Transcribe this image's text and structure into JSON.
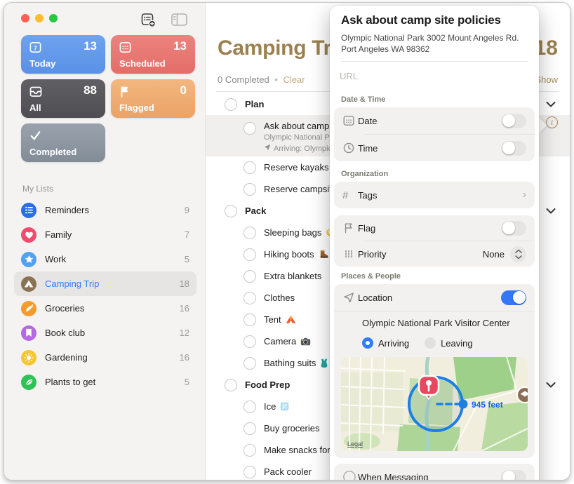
{
  "theme": {
    "accent_tan": "#9b8050",
    "accent_blue": "#2f7cf6",
    "link_tan": "#b49a6b",
    "selected_row_bg": "#f0efee"
  },
  "window": {
    "traffic_lights": {
      "close": "#ff5f57",
      "minimize": "#febc2e",
      "zoom": "#28c840"
    },
    "toolbar": [
      {
        "name": "add-reminder-icon"
      },
      {
        "name": "toggle-sidebar-icon"
      }
    ]
  },
  "sidebar": {
    "cards": [
      {
        "id": "today",
        "label": "Today",
        "count": "13",
        "icon": "calendar-today-icon",
        "color1": "#6ea3ee",
        "color2": "#5a90e7"
      },
      {
        "id": "scheduled",
        "label": "Scheduled",
        "count": "13",
        "icon": "calendar-grid-icon",
        "color1": "#ec837e",
        "color2": "#e46d68"
      },
      {
        "id": "all",
        "label": "All",
        "count": "88",
        "icon": "tray-icon",
        "color1": "#616165",
        "color2": "#4e4e52"
      },
      {
        "id": "flagged",
        "label": "Flagged",
        "count": "0",
        "icon": "flag-icon",
        "color1": "#f2b77f",
        "color2": "#eca266"
      },
      {
        "id": "completed",
        "label": "Completed",
        "count": "",
        "icon": "checkmark-icon",
        "color1": "#9aa3ad",
        "color2": "#828c97"
      }
    ],
    "my_lists_label": "My Lists",
    "lists": [
      {
        "name": "Reminders",
        "count": "9",
        "icon": "list-bullets-icon",
        "color": "#2a6de5",
        "selected": false
      },
      {
        "name": "Family",
        "count": "7",
        "icon": "heart-icon",
        "color": "#f4486c",
        "selected": false
      },
      {
        "name": "Work",
        "count": "5",
        "icon": "star-icon",
        "color": "#54a1ef",
        "selected": false
      },
      {
        "name": "Camping Trip",
        "count": "18",
        "icon": "tent-icon",
        "color": "#8a7355",
        "selected": true
      },
      {
        "name": "Groceries",
        "count": "16",
        "icon": "carrot-icon",
        "color": "#f39b2c",
        "selected": false
      },
      {
        "name": "Book club",
        "count": "12",
        "icon": "bookmark-icon",
        "color": "#b468e3",
        "selected": false
      },
      {
        "name": "Gardening",
        "count": "16",
        "icon": "sun-icon",
        "color": "#f6c52f",
        "selected": false
      },
      {
        "name": "Plants to get",
        "count": "5",
        "icon": "leaf-icon",
        "color": "#30c157",
        "selected": false
      }
    ]
  },
  "main": {
    "title": "Camping Trip",
    "list_count": "18",
    "completed_status": "0 Completed",
    "separator": "•",
    "clear_label": "Clear",
    "show_label": "Show",
    "sections": [
      {
        "title": "Plan",
        "items": [
          {
            "text": "Ask about camp site policies",
            "selected": true,
            "note": "Olympic National Park 3002 Mount Angeles Rd. Port Angeles WA 98362",
            "location_note": "Arriving: Olympic National Park Visitor Center"
          },
          {
            "text": "Reserve kayaks",
            "emoji": "canoe-emoji"
          },
          {
            "text": "Reserve campsites"
          }
        ]
      },
      {
        "title": "Pack",
        "items": [
          {
            "text": "Sleeping bags",
            "emoji": "moon-emoji"
          },
          {
            "text": "Hiking boots",
            "emoji": "boot-emoji"
          },
          {
            "text": "Extra blankets"
          },
          {
            "text": "Clothes"
          },
          {
            "text": "Tent",
            "emoji": "tent-emoji"
          },
          {
            "text": "Camera",
            "emoji": "camera-emoji"
          },
          {
            "text": "Bathing suits",
            "emoji": "swimsuit-emoji"
          }
        ]
      },
      {
        "title": "Food Prep",
        "items": [
          {
            "text": "Ice",
            "emoji": "ice-emoji"
          },
          {
            "text": "Buy groceries"
          },
          {
            "text": "Make snacks for road trip"
          },
          {
            "text": "Pack cooler"
          }
        ]
      }
    ]
  },
  "popup": {
    "title": "Ask about camp site policies",
    "address": "Olympic National Park 3002 Mount Angeles Rd. Port Angeles WA 98362",
    "url_placeholder": "URL",
    "date_time_label": "Date & Time",
    "date_label": "Date",
    "time_label": "Time",
    "organization_label": "Organization",
    "tags_label": "Tags",
    "flag_label": "Flag",
    "priority_label": "Priority",
    "priority_value": "None",
    "places_label": "Places & People",
    "location_label": "Location",
    "location_value": "Olympic National Park Visitor Center",
    "arriving_label": "Arriving",
    "leaving_label": "Leaving",
    "distance_label": "945 feet",
    "legal_label": "Legal",
    "messaging_label": "When Messaging",
    "toggles": {
      "date": false,
      "time": false,
      "flag": false,
      "location": true,
      "messaging": false
    }
  }
}
